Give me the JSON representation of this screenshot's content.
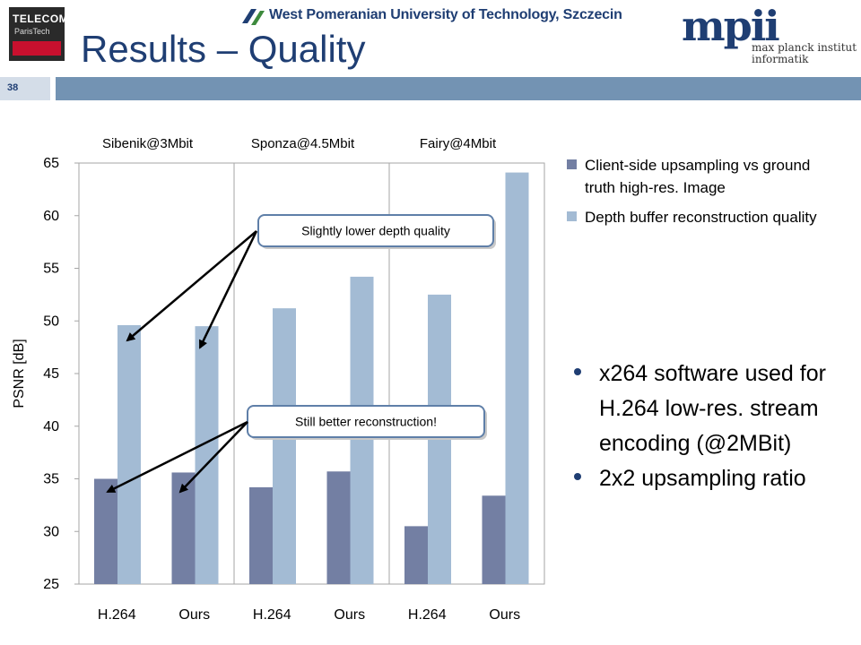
{
  "header": {
    "title": "Results – Quality",
    "page_number": "38",
    "university_name": "West Pomeranian University of Technology, Szczecin",
    "telecom_logo_line1": "TELECOM",
    "telecom_logo_line2": "ParisTech",
    "mpi_line1": "max planck institut",
    "mpi_line2": "informatik"
  },
  "colors": {
    "accent": "#1f3e73",
    "bar_series_1": "#737fa3",
    "bar_series_2": "#a3bbd4",
    "page_bar": "#7393b3"
  },
  "chart_data": {
    "type": "bar",
    "categories": [
      "H.264",
      "Ours",
      "H.264",
      "Ours",
      "H.264",
      "Ours"
    ],
    "groups": [
      "Sibenik@3Mbit",
      "Sponza@4.5Mbit",
      "Fairy@4Mbit"
    ],
    "series": [
      {
        "name": "Client-side upsampling vs ground truth high-res. Image",
        "values": [
          35.0,
          35.6,
          34.2,
          35.7,
          30.5,
          33.4
        ]
      },
      {
        "name": "Depth buffer reconstruction quality",
        "values": [
          49.6,
          49.5,
          51.2,
          54.2,
          52.5,
          64.1
        ]
      }
    ],
    "ylabel": "PSNR [dB]",
    "xlabel": "",
    "ylim": [
      25,
      65
    ],
    "yticks": [
      "25",
      "30",
      "35",
      "40",
      "45",
      "50",
      "55",
      "60",
      "65"
    ],
    "grid": false,
    "legend_position": "right",
    "annotations": [
      "Slightly lower depth quality",
      "Still better reconstruction!"
    ]
  },
  "bullets": [
    "x264 software used for H.264 low-res. stream encoding (@2MBit)",
    "2x2 upsampling ratio"
  ]
}
